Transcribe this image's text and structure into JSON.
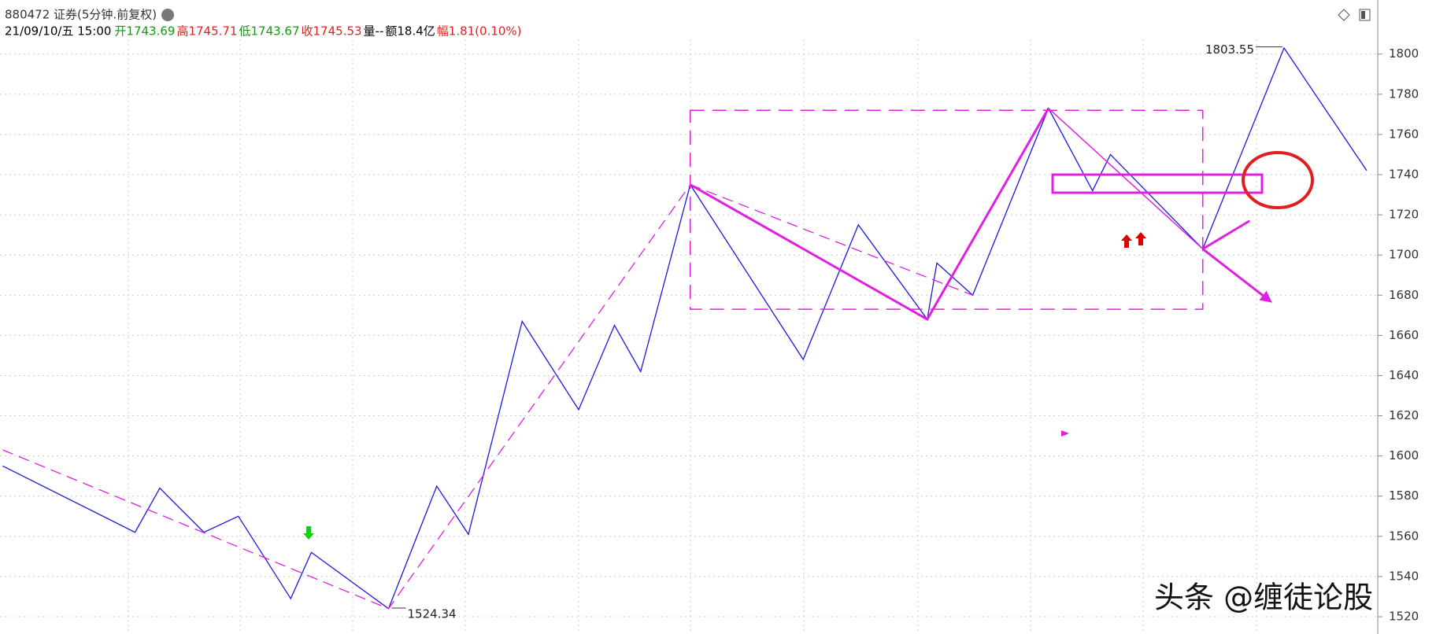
{
  "header": {
    "title": "880472 证券(5分钟.前复权)",
    "items": [
      {
        "text": "21/09/10/五 15:00",
        "color": "#000000"
      },
      {
        "text": "开1743.69",
        "color": "#109a10"
      },
      {
        "text": "高1745.71",
        "color": "#e02020"
      },
      {
        "text": "低1743.67",
        "color": "#109a10"
      },
      {
        "text": "收1745.53",
        "color": "#e02020"
      },
      {
        "text": "量--",
        "color": "#000000"
      },
      {
        "text": "额18.4亿",
        "color": "#000000"
      },
      {
        "text": "幅1.81(0.10%)",
        "color": "#e02020"
      }
    ]
  },
  "watermark": "头条 @缠徒论股",
  "chart_data": {
    "type": "line",
    "xlim": [
      0,
      100
    ],
    "ylim": [
      1511.4,
      1826.9
    ],
    "yticks": [
      1520,
      1540,
      1560,
      1580,
      1600,
      1620,
      1640,
      1660,
      1680,
      1700,
      1720,
      1740,
      1760,
      1780,
      1800
    ],
    "grid": true,
    "annotations": [
      {
        "value": 1803.55,
        "x": 93.2
      },
      {
        "value": 1524.34,
        "x": 28.2
      }
    ],
    "series": [
      {
        "color": "#1a1adc",
        "width": 1.3,
        "x": [
          0.2,
          9.8,
          11.6,
          14.8,
          17.3,
          21.1,
          22.6,
          28.2,
          31.7,
          34.0,
          37.9,
          42.0,
          44.6,
          46.5,
          50.1,
          58.3,
          62.3,
          67.3,
          68.0,
          70.6,
          76.1,
          79.3,
          80.6,
          87.3,
          93.2,
          99.2
        ],
        "values": [
          1595,
          1562,
          1584,
          1562,
          1570,
          1529,
          1552,
          1524,
          1585,
          1561,
          1667,
          1623,
          1665,
          1642,
          1735,
          1648,
          1715,
          1668,
          1696,
          1680,
          1773,
          1732,
          1750,
          1703,
          1803,
          1742
        ]
      },
      {
        "color": "#e020e0",
        "width": 1.3,
        "dash": true,
        "x": [
          0.2,
          28.2,
          50.1
        ],
        "values": [
          1603,
          1524,
          1735
        ]
      },
      {
        "color": "#e020e0",
        "width": 1.3,
        "dash": true,
        "x": [
          50.1,
          70.6
        ],
        "values": [
          1735,
          1680
        ]
      },
      {
        "color": "#e020e0",
        "width": 3,
        "x": [
          50.1,
          67.3,
          76.1
        ],
        "values": [
          1735,
          1668,
          1773
        ]
      },
      {
        "color": "#e020e0",
        "width": 1.5,
        "x": [
          76.1,
          87.3
        ],
        "values": [
          1773,
          1703
        ]
      },
      {
        "color": "#e020e0",
        "width": 3,
        "arrow": true,
        "x": [
          87.3,
          92.2
        ],
        "values": [
          1703,
          1677
        ]
      },
      {
        "color": "#e020e0",
        "width": 3,
        "x": [
          87.3,
          90.7
        ],
        "values": [
          1703,
          1717
        ]
      }
    ],
    "boxes": [
      {
        "x": [
          50.1,
          87.3
        ],
        "y": [
          1673,
          1772
        ],
        "color": "#e020e0",
        "width": 1.5,
        "dash": true
      },
      {
        "x": [
          76.4,
          91.6
        ],
        "y": [
          1731,
          1740
        ],
        "color": "#e020e0",
        "width": 3
      }
    ]
  }
}
